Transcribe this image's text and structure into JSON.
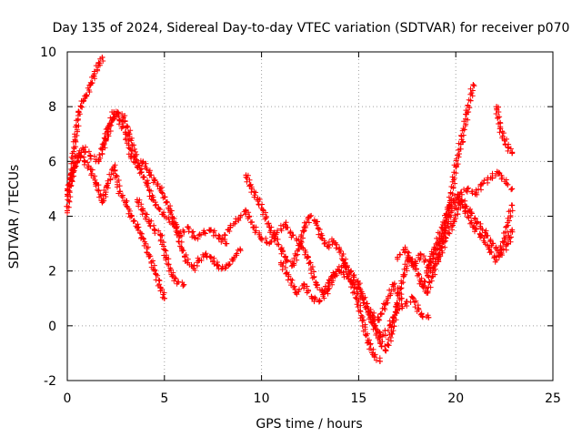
{
  "chart_data": {
    "type": "scatter",
    "title": "Day 135 of 2024, Sidereal Day-to-day VTEC variation (SDTVAR) for receiver p070",
    "xlabel": "GPS time / hours",
    "ylabel": "SDTVAR / TECUs",
    "xlim": [
      0,
      25
    ],
    "ylim": [
      -2,
      10
    ],
    "xticks": [
      "0",
      "5",
      "10",
      "15",
      "20",
      "25"
    ],
    "yticks": [
      "-2",
      "0",
      "2",
      "4",
      "6",
      "8",
      "10"
    ],
    "grid": true,
    "legend": "none",
    "marker": "plus",
    "color": "#ff0000",
    "series": [
      {
        "x": [
          0.0,
          0.2,
          0.4,
          0.6,
          0.8,
          1.0,
          1.2,
          1.4,
          1.6,
          1.8
        ],
        "y": [
          4.2,
          5.5,
          6.8,
          7.8,
          8.2,
          8.4,
          8.8,
          9.2,
          9.5,
          9.8
        ]
      },
      {
        "x": [
          0.0,
          0.3,
          0.6,
          0.9,
          1.2,
          1.5,
          1.8,
          2.1,
          2.4,
          2.7,
          3.0,
          3.3,
          3.6,
          3.9,
          4.2,
          4.5,
          4.8,
          5.0
        ],
        "y": [
          4.8,
          5.6,
          6.3,
          6.0,
          5.7,
          5.2,
          4.5,
          5.2,
          5.8,
          4.9,
          4.5,
          4.0,
          3.6,
          3.2,
          2.6,
          2.0,
          1.4,
          1.0
        ]
      },
      {
        "x": [
          0.0,
          0.4,
          0.8,
          1.2,
          1.6,
          2.0,
          2.3,
          2.6,
          2.9,
          3.2,
          3.5,
          3.8,
          4.1,
          4.4,
          4.7,
          5.0,
          5.4,
          5.8,
          6.2,
          6.6,
          7.0,
          7.4,
          7.8,
          8.2
        ],
        "y": [
          5.0,
          5.8,
          6.5,
          6.2,
          6.0,
          6.8,
          7.5,
          7.8,
          7.6,
          7.0,
          6.2,
          5.6,
          5.2,
          4.6,
          4.3,
          4.0,
          3.8,
          3.3,
          3.6,
          3.2,
          3.4,
          3.5,
          3.2,
          3.0
        ]
      },
      {
        "x": [
          1.8,
          2.1,
          2.4,
          2.7,
          3.0,
          3.3,
          3.6,
          3.9,
          4.2,
          4.5,
          4.8,
          5.0,
          5.3,
          5.6,
          5.9,
          6.2,
          6.5,
          6.8,
          7.1,
          7.4,
          7.7,
          8.0,
          8.3,
          8.6,
          8.9
        ],
        "y": [
          6.5,
          7.2,
          7.8,
          7.5,
          7.0,
          6.2,
          5.8,
          6.0,
          5.6,
          5.3,
          5.0,
          4.7,
          4.2,
          3.6,
          2.8,
          2.3,
          2.1,
          2.4,
          2.6,
          2.5,
          2.2,
          2.1,
          2.2,
          2.5,
          2.8
        ]
      },
      {
        "x": [
          3.6,
          3.9,
          4.2,
          4.5,
          4.8,
          5.1,
          5.4,
          5.7,
          6.0
        ],
        "y": [
          4.6,
          4.2,
          3.8,
          3.5,
          3.3,
          2.5,
          1.8,
          1.6,
          1.5
        ]
      },
      {
        "x": [
          8.0,
          8.4,
          8.8,
          9.2,
          9.6,
          10.0,
          10.4,
          10.8,
          11.2,
          11.6,
          12.0,
          12.4,
          12.8,
          13.2,
          13.6,
          14.0,
          14.4,
          14.8,
          15.2,
          15.6,
          16.0,
          16.4,
          16.8,
          17.2
        ],
        "y": [
          3.2,
          3.6,
          3.9,
          4.2,
          3.6,
          3.2,
          3.0,
          3.4,
          3.7,
          3.3,
          3.0,
          2.5,
          1.5,
          1.2,
          1.8,
          2.0,
          1.8,
          1.5,
          1.0,
          0.5,
          0.2,
          0.8,
          1.5,
          1.0
        ]
      },
      {
        "x": [
          9.2,
          9.5,
          9.8,
          10.1,
          10.4,
          10.7,
          11.0,
          11.3,
          11.6,
          11.9,
          12.2,
          12.5,
          12.8,
          13.1,
          13.4,
          13.7,
          14.0,
          14.3,
          14.6,
          14.9,
          15.2,
          15.5,
          15.8,
          16.1
        ],
        "y": [
          5.5,
          5.0,
          4.6,
          4.2,
          3.6,
          3.2,
          2.8,
          2.4,
          2.2,
          2.8,
          3.6,
          4.0,
          3.8,
          3.2,
          2.9,
          3.1,
          2.8,
          2.3,
          1.6,
          1.0,
          0.2,
          -0.6,
          -1.1,
          -1.3
        ]
      },
      {
        "x": [
          11.0,
          11.4,
          11.8,
          12.2,
          12.6,
          13.0,
          13.4,
          13.8,
          14.2,
          14.6,
          15.0,
          15.4,
          15.8,
          16.2,
          16.6,
          17.0,
          17.4,
          17.8,
          18.2,
          18.6
        ],
        "y": [
          2.3,
          1.8,
          1.2,
          1.5,
          1.0,
          0.9,
          1.3,
          1.9,
          2.2,
          2.0,
          1.5,
          0.7,
          0.0,
          -0.4,
          0.0,
          0.6,
          0.8,
          1.0,
          0.4,
          0.3
        ]
      },
      {
        "x": [
          15.5,
          15.8,
          16.1,
          16.4,
          16.7,
          17.0,
          17.3,
          17.6,
          17.9,
          18.2,
          18.5,
          18.8,
          19.1,
          19.4,
          19.7,
          20.0,
          20.3,
          20.6,
          20.9
        ],
        "y": [
          0.5,
          0.0,
          -0.6,
          -0.9,
          -0.3,
          0.8,
          1.8,
          2.5,
          2.2,
          1.6,
          1.2,
          1.8,
          2.6,
          3.5,
          4.5,
          5.8,
          6.8,
          7.8,
          8.8
        ]
      },
      {
        "x": [
          17.0,
          17.4,
          17.8,
          18.2,
          18.6,
          19.0,
          19.4,
          19.8,
          20.2,
          20.6,
          21.0,
          21.4,
          21.8,
          22.2,
          22.6,
          22.9
        ],
        "y": [
          2.5,
          2.8,
          2.2,
          2.6,
          2.2,
          2.8,
          3.4,
          4.2,
          4.8,
          5.0,
          4.8,
          5.2,
          5.4,
          5.6,
          5.2,
          5.0
        ]
      },
      {
        "x": [
          18.3,
          18.7,
          19.1,
          19.5,
          19.9,
          20.3,
          20.7,
          21.1,
          21.5,
          21.9,
          22.3,
          22.7,
          22.9
        ],
        "y": [
          1.5,
          2.0,
          2.4,
          3.2,
          3.8,
          4.6,
          4.2,
          3.8,
          3.4,
          3.0,
          2.6,
          3.0,
          3.5
        ]
      },
      {
        "x": [
          18.5,
          18.9,
          19.3,
          19.7,
          20.1,
          20.5,
          20.9,
          21.3,
          21.7,
          22.1,
          22.5,
          22.9
        ],
        "y": [
          2.0,
          2.8,
          3.6,
          4.4,
          4.8,
          4.2,
          3.6,
          3.3,
          2.8,
          2.4,
          3.2,
          4.4
        ]
      },
      {
        "x": [
          22.1,
          22.3,
          22.5,
          22.7,
          22.9
        ],
        "y": [
          8.0,
          7.2,
          6.8,
          6.5,
          6.3
        ]
      }
    ]
  }
}
